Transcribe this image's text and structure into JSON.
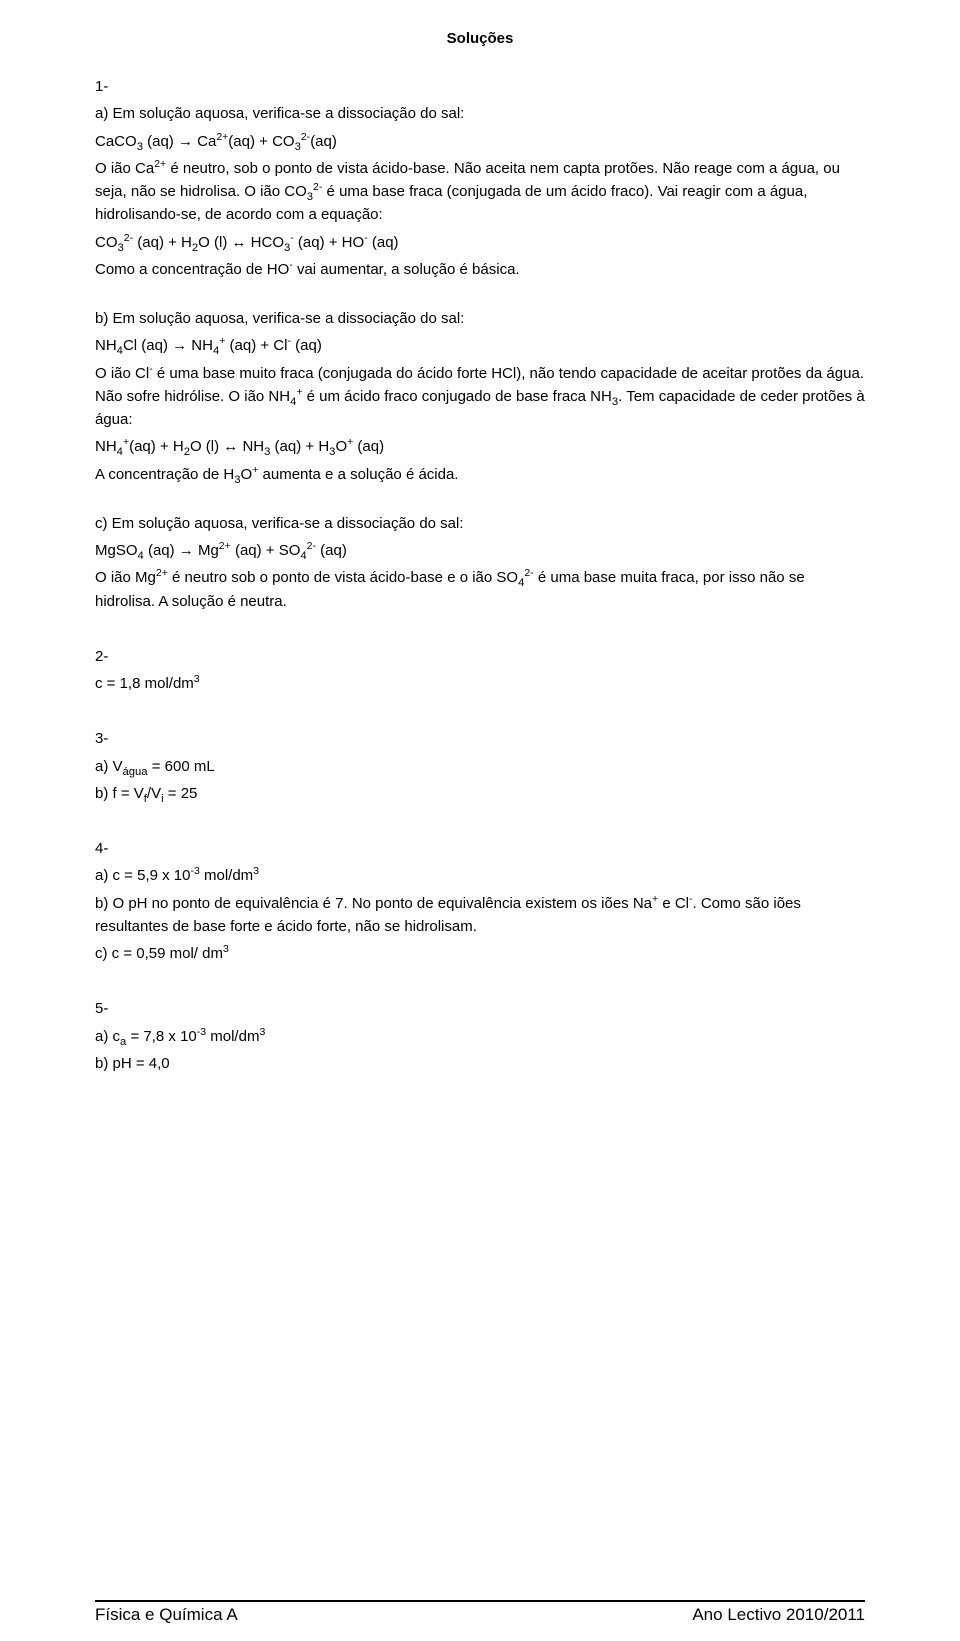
{
  "title": "Soluções",
  "q1": {
    "num": "1-",
    "a": {
      "l1": "a) Em solução aquosa, verifica-se a dissociação do sal:",
      "l2": "CaCO<sub>3</sub> (aq) → Ca<sup>2+</sup>(aq) + CO<sub>3</sub><sup>2-</sup>(aq)",
      "l3": "O ião Ca<sup>2+</sup> é neutro, sob o ponto de vista ácido-base. Não aceita nem capta protões. Não reage com a água, ou seja, não se hidrolisa. O ião CO<sub>3</sub><sup>2-</sup>  é uma base fraca (conjugada de um ácido fraco). Vai reagir com a água, hidrolisando-se, de acordo com a equação:",
      "l4": "CO<sub>3</sub><sup>2-</sup> (aq) + H<sub>2</sub>O (l) ↔ HCO<sub>3</sub><sup>-</sup> (aq) + HO<sup>-</sup> (aq)",
      "l5": "Como a concentração de HO<sup>-</sup> vai aumentar, a solução é básica."
    },
    "b": {
      "l1": "b) Em solução aquosa, verifica-se a dissociação do sal:",
      "l2": "NH<sub>4</sub>Cl (aq) → NH<sub>4</sub><sup>+</sup> (aq) + Cl<sup>-</sup> (aq)",
      "l3": "O ião Cl<sup>-</sup> é uma base muito fraca (conjugada do ácido forte HCl), não tendo capacidade de aceitar protões da água. Não sofre hidrólise. O ião NH<sub>4</sub><sup>+</sup> é um ácido fraco conjugado de base fraca NH<sub>3</sub>. Tem capacidade de ceder protões à água:",
      "l4": "NH<sub>4</sub><sup>+</sup>(aq) + H<sub>2</sub>O (l) ↔ NH<sub>3</sub> (aq) + H<sub>3</sub>O<sup>+</sup> (aq)",
      "l5": "A concentração de H<sub>3</sub>O<sup>+</sup> aumenta e a solução é ácida."
    },
    "c": {
      "l1": "c) Em solução aquosa, verifica-se a dissociação do sal:",
      "l2": "MgSO<sub>4</sub> (aq) → Mg<sup>2+</sup> (aq) + SO<sub>4</sub><sup>2-</sup> (aq)",
      "l3": "O ião Mg<sup>2+</sup> é neutro sob o ponto de vista ácido-base e o ião SO<sub>4</sub><sup>2-</sup> é uma base muita fraca, por isso não se hidrolisa. A solução é neutra."
    }
  },
  "q2": {
    "num": "2-",
    "l1": "c = 1,8 mol/dm<sup>3</sup>"
  },
  "q3": {
    "num": "3-",
    "l1": "a) V<sub>água</sub> = 600 mL",
    "l2": "b) f = V<sub>f</sub>/V<sub>i</sub> = 25"
  },
  "q4": {
    "num": "4-",
    "l1": "a) c = 5,9 x 10<sup>-3</sup> mol/dm<sup>3</sup>",
    "l2": "b) O pH no ponto de equivalência é 7. No ponto de equivalência existem os iões Na<sup>+</sup> e Cl<sup>-</sup>. Como são iões resultantes de base forte e ácido forte, não se hidrolisam.",
    "l3": "c) c = 0,59 mol/ dm<sup>3</sup>"
  },
  "q5": {
    "num": "5-",
    "l1": "a) c<sub>a</sub> = 7,8 x 10<sup>-3</sup> mol/dm<sup>3</sup>",
    "l2": "b) pH = 4,0"
  },
  "footer": {
    "left": "Física e Química A",
    "right": "Ano Lectivo 2010/2011"
  }
}
